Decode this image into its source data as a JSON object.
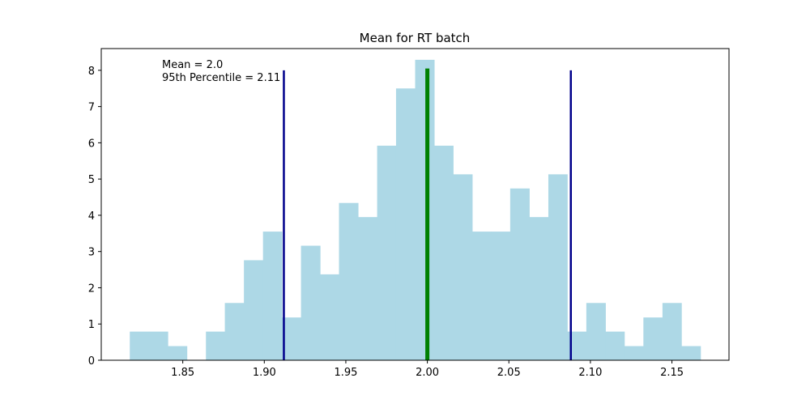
{
  "chart_data": {
    "type": "bar",
    "title": "Mean for RT batch",
    "xlabel": "",
    "ylabel": "",
    "xlim": [
      1.8,
      2.185
    ],
    "ylim": [
      0,
      8.6
    ],
    "xticks": [
      1.85,
      1.9,
      1.95,
      2.0,
      2.05,
      2.1,
      2.15
    ],
    "xtick_labels": [
      "1.85",
      "1.90",
      "1.95",
      "2.00",
      "2.05",
      "2.10",
      "2.15"
    ],
    "yticks": [
      0,
      1,
      2,
      3,
      4,
      5,
      6,
      7,
      8
    ],
    "ytick_labels": [
      "0",
      "1",
      "2",
      "3",
      "4",
      "5",
      "6",
      "7",
      "8"
    ],
    "bin_edges": [
      1.8175,
      1.8292,
      1.8408,
      1.8525,
      1.8642,
      1.8758,
      1.8875,
      1.8992,
      1.9108,
      1.9225,
      1.9342,
      1.9458,
      1.9575,
      1.9692,
      1.9808,
      1.9925,
      2.0042,
      2.0158,
      2.0275,
      2.0392,
      2.0508,
      2.0625,
      2.0742,
      2.0858,
      2.0975,
      2.1092,
      2.1208,
      2.1325,
      2.1442,
      2.1558,
      2.1675
    ],
    "counts": [
      0.79,
      0.79,
      0.39,
      0.0,
      0.79,
      1.58,
      2.76,
      3.55,
      1.18,
      3.16,
      2.37,
      4.34,
      3.95,
      5.92,
      7.5,
      8.29,
      5.92,
      5.13,
      3.55,
      3.55,
      4.74,
      3.95,
      5.13,
      0.79,
      1.58,
      0.79,
      0.39,
      1.18,
      1.58,
      0.39
    ],
    "bar_color": "#add8e6",
    "vlines": [
      {
        "x": 1.912,
        "ymax": 8.0,
        "color": "#00008b",
        "role": "lower"
      },
      {
        "x": 2.0,
        "ymax": 8.05,
        "color": "#008000",
        "role": "mean"
      },
      {
        "x": 2.088,
        "ymax": 8.0,
        "color": "#00008b",
        "role": "upper"
      }
    ],
    "annotations": [
      "Mean = 2.0",
      "95th Percentile = 2.11"
    ]
  }
}
